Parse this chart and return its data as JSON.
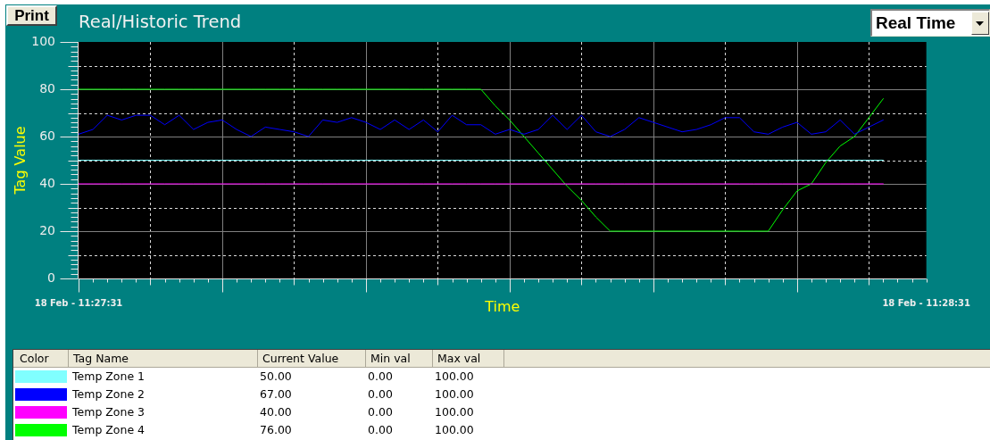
{
  "chart_data": {
    "type": "line",
    "title": "Real/Historic Trend",
    "xlabel": "Time",
    "ylabel": "Tag Value",
    "categories": [
      "18 Feb - 11:27:31",
      null,
      null,
      null,
      null,
      null,
      null,
      null,
      null,
      null,
      null,
      null,
      null,
      null,
      null,
      null,
      null,
      null,
      null,
      null,
      null,
      null,
      null,
      null,
      null,
      null,
      null,
      null,
      null,
      null,
      null,
      null,
      null,
      null,
      null,
      null,
      null,
      null,
      null,
      null,
      null,
      null,
      null,
      null,
      null,
      null,
      null,
      null,
      null,
      null,
      null,
      null,
      null,
      null,
      null,
      null,
      null,
      null,
      null,
      "18 Feb - 11:28:31"
    ],
    "ylim": [
      0,
      100
    ],
    "yticks": [
      0,
      {
        "value": 10,
        "label": null
      },
      20,
      {
        "value": 30,
        "label": null
      },
      40,
      {
        "value": 50,
        "label": null
      },
      60,
      {
        "value": 70,
        "label": null
      },
      80,
      {
        "value": 90,
        "label": null
      },
      100
    ],
    "grid": true,
    "legend": "bottom",
    "series": [
      {
        "name": "Temp Zone 1",
        "color": "#80ffff",
        "values": [
          50,
          50,
          50,
          50,
          50,
          50,
          50,
          50,
          50,
          50,
          50,
          50,
          50,
          50,
          50,
          50,
          50,
          50,
          50,
          50,
          50,
          50,
          50,
          50,
          50,
          50,
          50,
          50,
          50,
          50,
          50,
          50,
          50,
          50,
          50,
          50,
          50,
          50,
          50,
          50,
          50,
          50,
          50,
          50,
          50,
          50,
          50,
          50,
          50,
          50,
          50,
          50,
          50,
          50,
          50,
          50,
          50,
          null,
          null,
          null
        ]
      },
      {
        "name": "Temp Zone 2",
        "color": "#0000ff",
        "values": [
          61,
          63,
          69,
          67,
          69,
          69,
          65,
          69,
          63,
          66,
          67,
          63,
          60,
          64,
          63,
          62,
          60,
          67,
          66,
          68,
          66,
          63,
          67,
          63,
          67,
          62,
          69,
          65,
          65,
          61,
          63,
          61,
          63,
          69,
          63,
          69,
          62,
          60,
          63,
          68,
          66,
          64,
          62,
          63,
          65,
          68,
          68,
          62,
          61,
          64,
          66,
          61,
          62,
          67,
          61,
          64,
          67,
          null,
          null,
          null
        ]
      },
      {
        "name": "Temp Zone 3",
        "color": "#ff00ff",
        "values": [
          40,
          40,
          40,
          40,
          40,
          40,
          40,
          40,
          40,
          40,
          40,
          40,
          40,
          40,
          40,
          40,
          40,
          40,
          40,
          40,
          40,
          40,
          40,
          40,
          40,
          40,
          40,
          40,
          40,
          40,
          40,
          40,
          40,
          40,
          40,
          40,
          40,
          40,
          40,
          40,
          40,
          40,
          40,
          40,
          40,
          40,
          40,
          40,
          40,
          40,
          40,
          40,
          40,
          40,
          40,
          40,
          40,
          null,
          null,
          null
        ]
      },
      {
        "name": "Temp Zone 4",
        "color": "#00ff00",
        "values": [
          80,
          80,
          80,
          80,
          80,
          80,
          80,
          80,
          80,
          80,
          80,
          80,
          80,
          80,
          80,
          80,
          80,
          80,
          80,
          80,
          80,
          80,
          80,
          80,
          80,
          80,
          80,
          80,
          80,
          73,
          67,
          60,
          53,
          46,
          39,
          33,
          26,
          20,
          20,
          20,
          20,
          20,
          20,
          20,
          20,
          20,
          20,
          20,
          20,
          29,
          37,
          40,
          49,
          56,
          60,
          68,
          76,
          null,
          null,
          null
        ]
      }
    ],
    "annotations": [
      "Print",
      "Real Time",
      "Color",
      "Tag Name",
      "Current Value",
      "Min val",
      "Max val",
      "50.00",
      "0.00",
      "100.00",
      "67.00",
      "0.00",
      "100.00",
      "40.00",
      "0.00",
      "100.00",
      "76.00",
      "0.00",
      "100.00"
    ]
  }
}
